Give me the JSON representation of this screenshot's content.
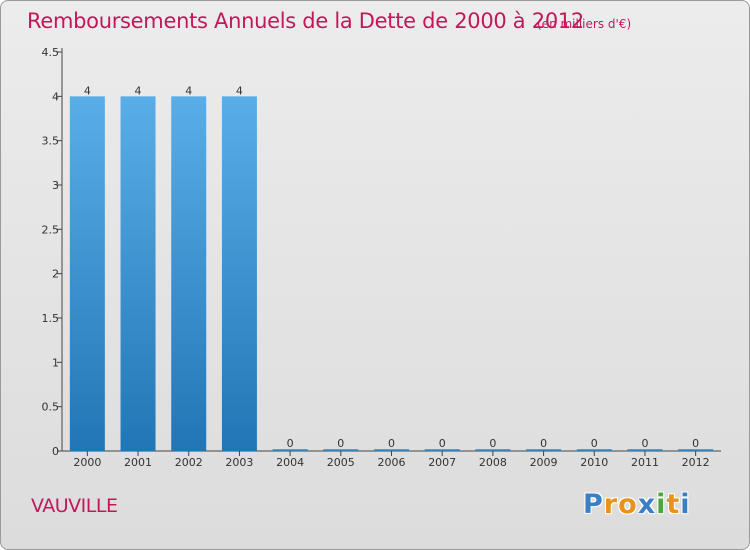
{
  "chart_data": {
    "type": "bar",
    "title": "Remboursements Annuels de la Dette de 2000 à 2012",
    "unit": "(en milliers d'€)",
    "categories": [
      "2000",
      "2001",
      "2002",
      "2003",
      "2004",
      "2005",
      "2006",
      "2007",
      "2008",
      "2009",
      "2010",
      "2011",
      "2012"
    ],
    "values": [
      4,
      4,
      4,
      4,
      0,
      0,
      0,
      0,
      0,
      0,
      0,
      0,
      0
    ],
    "data_labels": [
      "4",
      "4",
      "4",
      "4",
      "0",
      "0",
      "0",
      "0",
      "0",
      "0",
      "0",
      "0",
      "0"
    ],
    "yticks": [
      "0",
      "0.5",
      "1",
      "1.5",
      "2",
      "2.5",
      "3",
      "3.5",
      "4",
      "4.5"
    ],
    "ytick_values": [
      0,
      0.5,
      1,
      1.5,
      2,
      2.5,
      3,
      3.5,
      4,
      4.5
    ],
    "ylim": [
      0,
      4.5
    ],
    "xlabel": "",
    "ylabel": "",
    "grid": false,
    "bar_color_top": "#5aaee8",
    "bar_color_bottom": "#2176b5"
  },
  "commune": "VAUVILLE",
  "logo": {
    "letters": [
      "P",
      "r",
      "o",
      "x",
      "i",
      "t",
      "i"
    ],
    "colors": [
      "#3a7fc4",
      "#e8931c",
      "#e8931c",
      "#3a7fc4",
      "#4aa83a",
      "#e8931c",
      "#3a7fc4"
    ]
  }
}
